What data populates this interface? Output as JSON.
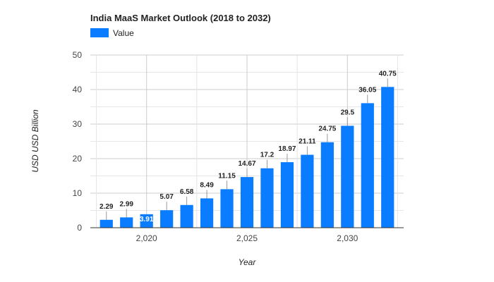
{
  "chart_data": {
    "type": "bar",
    "title": "India MaaS Market Outlook (2018 to 2032)",
    "xlabel": "Year",
    "ylabel": "USD USD Billion",
    "legend": {
      "position": "top-left",
      "entries": [
        "Value"
      ]
    },
    "series": [
      {
        "name": "Value",
        "color": "#0a7cff",
        "x": [
          2018,
          2019,
          2020,
          2021,
          2022,
          2023,
          2024,
          2025,
          2026,
          2027,
          2028,
          2029,
          2030,
          2031,
          2032
        ],
        "values": [
          2.29,
          2.99,
          3.91,
          5.07,
          6.58,
          8.49,
          11.15,
          14.67,
          17.2,
          18.97,
          21.11,
          24.75,
          29.5,
          36.05,
          40.75
        ],
        "labels": [
          "2.29",
          "2.99",
          "3.91",
          "5.07",
          "6.58",
          "8.49",
          "11.15",
          "14.67",
          "17.2",
          "18.97",
          "21.11",
          "24.75",
          "29.5",
          "36.05",
          "40.75"
        ]
      }
    ],
    "xlim": [
      2017.2,
      2032.8
    ],
    "ylim": [
      0,
      50
    ],
    "yticks": [
      0,
      10,
      20,
      30,
      40,
      50
    ],
    "ytick_labels": [
      "0",
      "10",
      "20",
      "30",
      "40",
      "50"
    ],
    "xticks": [
      2020,
      2025,
      2030
    ],
    "xtick_labels": [
      "2,020",
      "2,025",
      "2,030"
    ],
    "grid": true
  }
}
